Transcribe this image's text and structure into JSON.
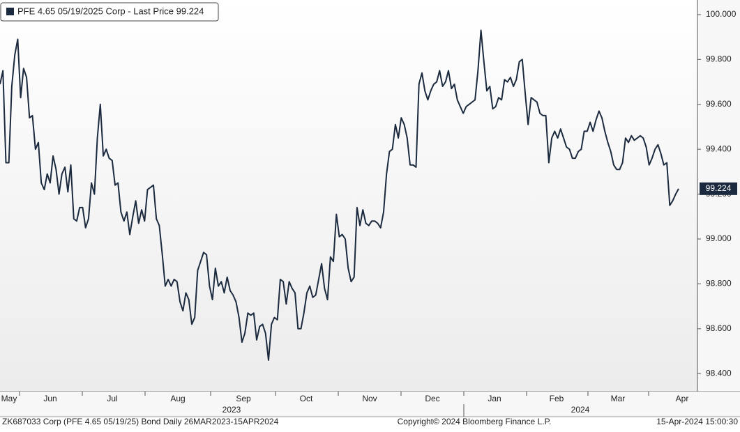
{
  "chart_data": {
    "type": "line",
    "series": [
      {
        "name": "PFE 4.65 05/19/2025 Corp - Last Price 99.224",
        "color": "#1b2a3e",
        "values": [
          99.69,
          99.75,
          99.34,
          99.34,
          99.68,
          99.82,
          99.89,
          99.63,
          99.76,
          99.72,
          99.54,
          99.55,
          99.4,
          99.43,
          99.25,
          99.22,
          99.29,
          99.25,
          99.37,
          99.31,
          99.2,
          99.29,
          99.32,
          99.21,
          99.33,
          99.09,
          99.08,
          99.14,
          99.14,
          99.05,
          99.09,
          99.25,
          99.2,
          99.45,
          99.6,
          99.37,
          99.4,
          99.36,
          99.35,
          99.24,
          99.25,
          99.12,
          99.08,
          99.12,
          99.02,
          99.1,
          99.17,
          99.07,
          99.13,
          99.08,
          99.22,
          99.23,
          99.24,
          99.09,
          99.06,
          98.93,
          98.79,
          98.82,
          98.79,
          98.82,
          98.81,
          98.72,
          98.68,
          98.76,
          98.73,
          98.62,
          98.65,
          98.86,
          98.9,
          98.94,
          98.93,
          98.79,
          98.73,
          98.87,
          98.79,
          98.81,
          98.76,
          98.83,
          98.77,
          98.75,
          98.72,
          98.65,
          98.54,
          98.58,
          98.67,
          98.66,
          98.67,
          98.55,
          98.61,
          98.62,
          98.58,
          98.46,
          98.62,
          98.65,
          98.64,
          98.82,
          98.81,
          98.71,
          98.81,
          98.78,
          98.76,
          98.6,
          98.6,
          98.67,
          98.76,
          98.79,
          98.74,
          98.75,
          98.82,
          98.89,
          98.78,
          98.73,
          98.92,
          98.9,
          99.11,
          99.01,
          99.02,
          99.0,
          98.87,
          98.81,
          98.83,
          99.14,
          99.06,
          99.13,
          99.07,
          99.06,
          99.08,
          99.08,
          99.07,
          99.05,
          99.12,
          99.29,
          99.39,
          99.4,
          99.51,
          99.45,
          99.54,
          99.51,
          99.45,
          99.33,
          99.33,
          99.32,
          99.69,
          99.74,
          99.66,
          99.62,
          99.66,
          99.69,
          99.7,
          99.75,
          99.68,
          99.7,
          99.75,
          99.67,
          99.69,
          99.62,
          99.59,
          99.56,
          99.59,
          99.6,
          99.61,
          99.62,
          99.75,
          99.93,
          99.79,
          99.66,
          99.68,
          99.58,
          99.59,
          99.63,
          99.62,
          99.71,
          99.7,
          99.72,
          99.68,
          99.71,
          99.79,
          99.8,
          99.65,
          99.51,
          99.63,
          99.62,
          99.61,
          99.56,
          99.55,
          99.55,
          99.34,
          99.45,
          99.48,
          99.45,
          99.49,
          99.45,
          99.41,
          99.4,
          99.36,
          99.36,
          99.39,
          99.4,
          99.48,
          99.48,
          99.52,
          99.48,
          99.53,
          99.57,
          99.54,
          99.48,
          99.43,
          99.39,
          99.33,
          99.31,
          99.31,
          99.34,
          99.45,
          99.43,
          99.46,
          99.44,
          99.45,
          99.46,
          99.45,
          99.41,
          99.33,
          99.36,
          99.4,
          99.42,
          99.38,
          99.33,
          99.34,
          99.15,
          99.17,
          99.2,
          99.224
        ]
      }
    ],
    "ylim": [
      98.32,
      100.065
    ],
    "yticks": [
      {
        "value": 98.4,
        "label": "98.400"
      },
      {
        "value": 98.6,
        "label": "98.600"
      },
      {
        "value": 98.8,
        "label": "98.800"
      },
      {
        "value": 99.0,
        "label": "99.000"
      },
      {
        "value": 99.2,
        "label": "99.200"
      },
      {
        "value": 99.4,
        "label": "99.400"
      },
      {
        "value": 99.6,
        "label": "99.600"
      },
      {
        "value": 99.8,
        "label": "99.800"
      },
      {
        "value": 100.0,
        "label": "100.000"
      }
    ],
    "x_month_labels": [
      "May",
      "Jun",
      "Jul",
      "Aug",
      "Sep",
      "Oct",
      "Nov",
      "Dec",
      "Jan",
      "Feb",
      "Mar",
      "Apr"
    ],
    "x_year_labels": [
      "2023",
      "2024"
    ],
    "footer": [
      "ZK687033 Corp (PFE 4.65 05/19/25) Bond  Daily 26MAR2023-15APR2024",
      "Copyright© 2024 Bloomberg Finance L.P.",
      "15-Apr-2024 15:00:30"
    ]
  }
}
